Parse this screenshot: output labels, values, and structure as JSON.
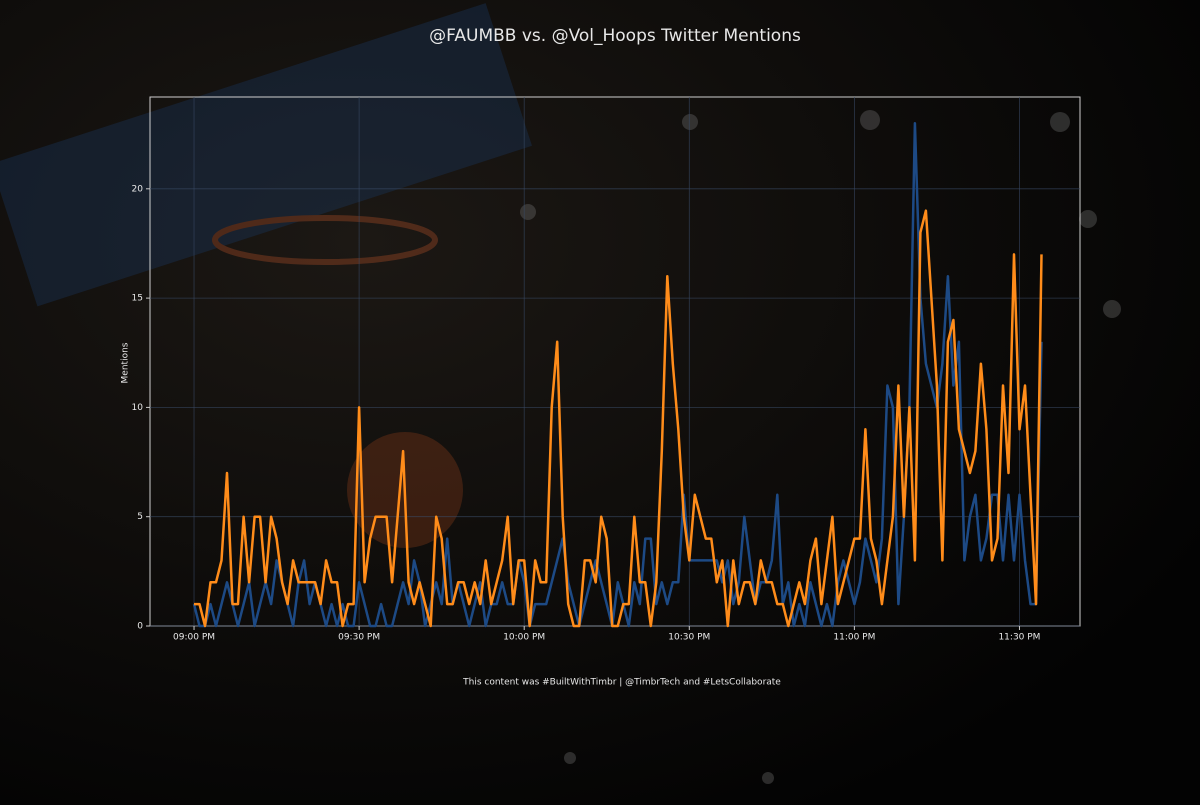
{
  "chart_data": {
    "type": "line",
    "title": "@FAUMBB vs. @Vol_Hoops Twitter Mentions",
    "ylabel": "Mentions",
    "footer": "This content was #BuiltWithTimbr | @TimbrTech and #LetsCollaborate",
    "x": [
      "09:00 PM",
      "09:01 PM",
      "09:02 PM",
      "09:03 PM",
      "09:04 PM",
      "09:05 PM",
      "09:06 PM",
      "09:07 PM",
      "09:08 PM",
      "09:09 PM",
      "09:10 PM",
      "09:11 PM",
      "09:12 PM",
      "09:13 PM",
      "09:14 PM",
      "09:15 PM",
      "09:16 PM",
      "09:17 PM",
      "09:18 PM",
      "09:19 PM",
      "09:20 PM",
      "09:21 PM",
      "09:22 PM",
      "09:23 PM",
      "09:24 PM",
      "09:25 PM",
      "09:26 PM",
      "09:27 PM",
      "09:28 PM",
      "09:29 PM",
      "09:30 PM",
      "09:31 PM",
      "09:32 PM",
      "09:33 PM",
      "09:34 PM",
      "09:35 PM",
      "09:36 PM",
      "09:37 PM",
      "09:38 PM",
      "09:39 PM",
      "09:40 PM",
      "09:41 PM",
      "09:42 PM",
      "09:43 PM",
      "09:44 PM",
      "09:45 PM",
      "09:46 PM",
      "09:47 PM",
      "09:48 PM",
      "09:49 PM",
      "09:50 PM",
      "09:51 PM",
      "09:52 PM",
      "09:53 PM",
      "09:54 PM",
      "09:55 PM",
      "09:56 PM",
      "09:57 PM",
      "09:58 PM",
      "09:59 PM",
      "10:00 PM",
      "10:01 PM",
      "10:02 PM",
      "10:03 PM",
      "10:04 PM",
      "10:05 PM",
      "10:06 PM",
      "10:07 PM",
      "10:08 PM",
      "10:09 PM",
      "10:10 PM",
      "10:11 PM",
      "10:12 PM",
      "10:13 PM",
      "10:14 PM",
      "10:15 PM",
      "10:16 PM",
      "10:17 PM",
      "10:18 PM",
      "10:19 PM",
      "10:20 PM",
      "10:21 PM",
      "10:22 PM",
      "10:23 PM",
      "10:24 PM",
      "10:25 PM",
      "10:26 PM",
      "10:27 PM",
      "10:28 PM",
      "10:29 PM",
      "10:30 PM",
      "10:31 PM",
      "10:32 PM",
      "10:33 PM",
      "10:34 PM",
      "10:35 PM",
      "10:36 PM",
      "10:37 PM",
      "10:38 PM",
      "10:39 PM",
      "10:40 PM",
      "10:41 PM",
      "10:42 PM",
      "10:43 PM",
      "10:44 PM",
      "10:45 PM",
      "10:46 PM",
      "10:47 PM",
      "10:48 PM",
      "10:49 PM",
      "10:50 PM",
      "10:51 PM",
      "10:52 PM",
      "10:53 PM",
      "10:54 PM",
      "10:55 PM",
      "10:56 PM",
      "10:57 PM",
      "10:58 PM",
      "10:59 PM",
      "11:00 PM",
      "11:01 PM",
      "11:02 PM",
      "11:03 PM",
      "11:04 PM",
      "11:05 PM",
      "11:06 PM",
      "11:07 PM",
      "11:08 PM",
      "11:09 PM",
      "11:10 PM",
      "11:11 PM",
      "11:12 PM",
      "11:13 PM",
      "11:14 PM",
      "11:15 PM",
      "11:16 PM",
      "11:17 PM",
      "11:18 PM",
      "11:19 PM",
      "11:20 PM",
      "11:21 PM",
      "11:22 PM",
      "11:23 PM",
      "11:24 PM",
      "11:25 PM",
      "11:26 PM",
      "11:27 PM",
      "11:28 PM",
      "11:29 PM",
      "11:30 PM",
      "11:31 PM",
      "11:32 PM",
      "11:33 PM",
      "11:34 PM"
    ],
    "series": [
      {
        "color": "#1d4a85",
        "values": [
          1,
          0,
          0,
          1,
          0,
          1,
          2,
          1,
          0,
          1,
          2,
          0,
          1,
          2,
          1,
          3,
          2,
          1,
          0,
          2,
          3,
          1,
          2,
          1,
          0,
          1,
          0,
          1,
          0,
          0,
          2,
          1,
          0,
          0,
          1,
          0,
          0,
          1,
          2,
          1,
          3,
          2,
          0,
          1,
          2,
          1,
          4,
          1,
          2,
          1,
          0,
          1,
          2,
          0,
          1,
          1,
          2,
          1,
          1,
          3,
          2,
          0,
          1,
          1,
          1,
          2,
          3,
          4,
          2,
          1,
          0,
          1,
          2,
          3,
          2,
          1,
          0,
          2,
          1,
          0,
          2,
          1,
          4,
          4,
          1,
          2,
          1,
          2,
          2,
          6,
          3,
          3,
          3,
          3,
          3,
          3,
          2,
          3,
          1,
          2,
          5,
          3,
          1,
          2,
          2,
          3,
          6,
          1,
          2,
          0,
          1,
          0,
          2,
          1,
          0,
          1,
          0,
          2,
          3,
          2,
          1,
          2,
          4,
          3,
          2,
          4,
          11,
          10,
          1,
          5,
          10,
          23,
          15,
          12,
          11,
          10,
          12,
          16,
          11,
          13,
          3,
          5,
          6,
          3,
          4,
          6,
          6,
          3,
          6,
          3,
          6,
          3,
          1,
          1,
          13
        ]
      },
      {
        "color": "#ff8c1a",
        "values": [
          1,
          1,
          0,
          2,
          2,
          3,
          7,
          1,
          1,
          5,
          2,
          5,
          5,
          2,
          5,
          4,
          2,
          1,
          3,
          2,
          2,
          2,
          2,
          1,
          3,
          2,
          2,
          0,
          1,
          1,
          10,
          2,
          4,
          5,
          5,
          5,
          2,
          5,
          8,
          2,
          1,
          2,
          1,
          0,
          5,
          4,
          1,
          1,
          2,
          2,
          1,
          2,
          1,
          3,
          1,
          2,
          3,
          5,
          1,
          3,
          3,
          0,
          3,
          2,
          2,
          10,
          13,
          5,
          1,
          0,
          0,
          3,
          3,
          2,
          5,
          4,
          0,
          0,
          1,
          1,
          5,
          2,
          2,
          0,
          2,
          8,
          16,
          12,
          9,
          5,
          3,
          6,
          5,
          4,
          4,
          2,
          3,
          0,
          3,
          1,
          2,
          2,
          1,
          3,
          2,
          2,
          1,
          1,
          0,
          1,
          2,
          1,
          3,
          4,
          1,
          3,
          5,
          1,
          2,
          3,
          4,
          4,
          9,
          4,
          3,
          1,
          3,
          5,
          11,
          5,
          10,
          3,
          18,
          19,
          15,
          11,
          3,
          13,
          14,
          9,
          8,
          7,
          8,
          12,
          9,
          3,
          4,
          11,
          7,
          17,
          9,
          11,
          6,
          1,
          17
        ]
      }
    ],
    "xlim": [
      "08:52 PM",
      "11:41 PM"
    ],
    "xticks": [
      "09:00 PM",
      "09:30 PM",
      "10:00 PM",
      "10:30 PM",
      "11:00 PM",
      "11:30 PM"
    ],
    "ylim": [
      0,
      24.2
    ],
    "yticks": [
      0,
      5,
      10,
      15,
      20
    ],
    "grid": true
  }
}
